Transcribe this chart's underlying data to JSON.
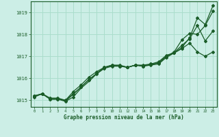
{
  "title": "Graphe pression niveau de la mer (hPa)",
  "bg_color": "#cceee6",
  "grid_color": "#aaddcc",
  "line_color": "#1a5c28",
  "text_color": "#1a5c28",
  "ylim": [
    1014.7,
    1019.5
  ],
  "xlim": [
    -0.5,
    23.5
  ],
  "yticks": [
    1015,
    1016,
    1017,
    1018,
    1019
  ],
  "xticks": [
    0,
    1,
    2,
    3,
    4,
    5,
    6,
    7,
    8,
    9,
    10,
    11,
    12,
    13,
    14,
    15,
    16,
    17,
    18,
    19,
    20,
    21,
    22,
    23
  ],
  "series": [
    [
      1015.2,
      1015.3,
      1015.05,
      1015.05,
      1014.95,
      1015.15,
      1015.55,
      1015.85,
      1016.2,
      1016.45,
      1016.55,
      1016.55,
      1016.5,
      1016.6,
      1016.55,
      1016.6,
      1016.65,
      1016.95,
      1017.15,
      1017.4,
      1017.85,
      1018.75,
      1018.45,
      1019.3
    ],
    [
      1015.15,
      1015.3,
      1015.05,
      1015.05,
      1015.0,
      1015.3,
      1015.6,
      1015.95,
      1016.2,
      1016.5,
      1016.6,
      1016.55,
      1016.5,
      1016.6,
      1016.55,
      1016.65,
      1016.75,
      1017.05,
      1017.15,
      1017.35,
      1017.6,
      1017.2,
      1017.0,
      1017.2
    ],
    [
      1015.2,
      1015.3,
      1015.1,
      1015.1,
      1015.0,
      1015.4,
      1015.7,
      1016.05,
      1016.3,
      1016.5,
      1016.6,
      1016.6,
      1016.5,
      1016.6,
      1016.6,
      1016.65,
      1016.7,
      1017.0,
      1017.2,
      1017.75,
      1018.05,
      1018.0,
      1018.4,
      1019.05
    ],
    [
      1015.2,
      1015.28,
      1015.07,
      1015.07,
      1014.97,
      1015.27,
      1015.6,
      1015.93,
      1016.22,
      1016.48,
      1016.58,
      1016.57,
      1016.5,
      1016.6,
      1016.57,
      1016.63,
      1016.7,
      1017.0,
      1017.17,
      1017.5,
      1017.8,
      1018.4,
      1017.7,
      1018.15
    ]
  ]
}
